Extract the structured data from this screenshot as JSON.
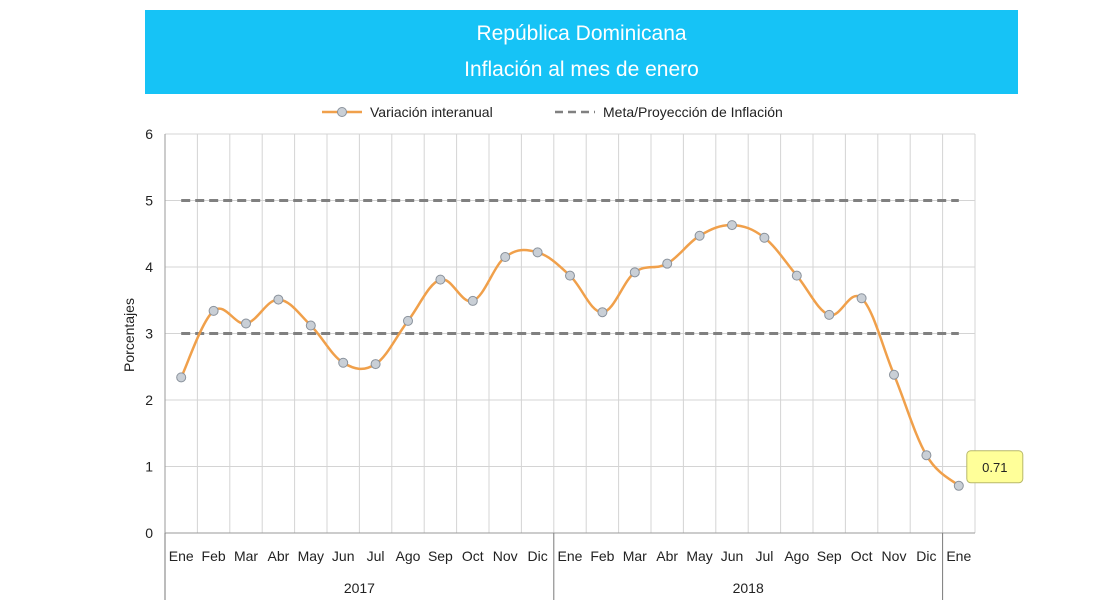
{
  "title": {
    "line1": "República Dominicana",
    "line2": "Inflación al mes de enero"
  },
  "legend": {
    "series_label": "Variación interanual",
    "target_label": "Meta/Proyección de Inflación"
  },
  "chart_data": {
    "type": "line",
    "title": "República Dominicana — Inflación al mes de enero",
    "ylabel": "Porcentajes",
    "xlabel": "",
    "ylim": [
      0,
      6
    ],
    "yticks": [
      "0",
      "1",
      "2",
      "3",
      "4",
      "5",
      "6"
    ],
    "grid": true,
    "legend_position": "top",
    "categories": [
      "Ene",
      "Feb",
      "Mar",
      "Abr",
      "May",
      "Jun",
      "Jul",
      "Ago",
      "Sep",
      "Oct",
      "Nov",
      "Dic",
      "Ene",
      "Feb",
      "Mar",
      "Abr",
      "May",
      "Jun",
      "Jul",
      "Ago",
      "Sep",
      "Oct",
      "Nov",
      "Dic",
      "Ene"
    ],
    "year_groups": [
      {
        "label": "2017",
        "start": 0,
        "end": 11
      },
      {
        "label": "2018",
        "start": 12,
        "end": 23
      }
    ],
    "series": [
      {
        "name": "Variación interanual",
        "color": "#f0a04b",
        "values": [
          2.34,
          3.34,
          3.15,
          3.51,
          3.12,
          2.56,
          2.54,
          3.19,
          3.81,
          3.49,
          4.15,
          4.22,
          3.87,
          3.32,
          3.92,
          4.05,
          4.47,
          4.63,
          4.44,
          3.87,
          3.28,
          3.53,
          2.38,
          1.17,
          0.71
        ]
      }
    ],
    "reference_lines": [
      {
        "name": "Meta/Proyección de Inflación",
        "color": "#808080",
        "y_upper": 5,
        "y_lower": 3
      }
    ],
    "annotation": {
      "label": "0.71",
      "index": 24
    }
  }
}
